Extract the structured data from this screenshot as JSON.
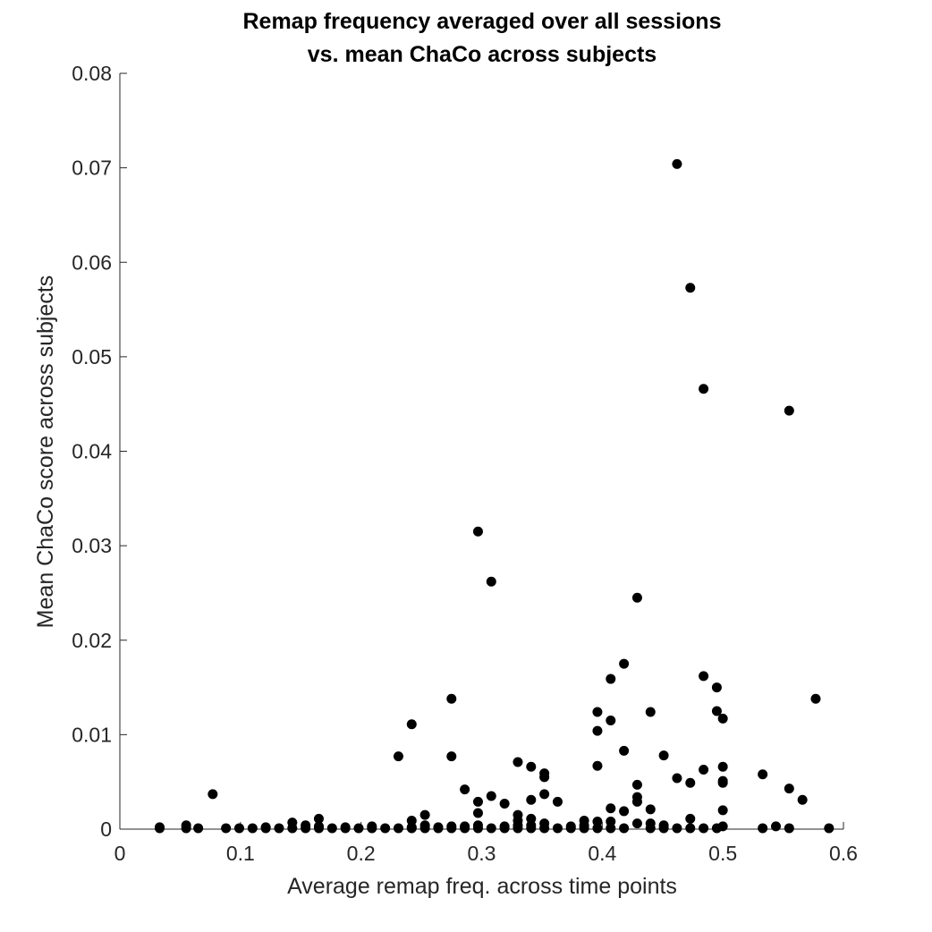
{
  "chart_data": {
    "type": "scatter",
    "title": [
      "Remap frequency averaged over all sessions",
      "vs. mean ChaCo across subjects"
    ],
    "xlabel": "Average remap freq. across time points",
    "ylabel": "Mean ChaCo score across subjects",
    "xlim": [
      0,
      0.6
    ],
    "ylim": [
      0,
      0.08
    ],
    "x_ticks": [
      0,
      0.1,
      0.2,
      0.3,
      0.4,
      0.5,
      0.6
    ],
    "x_tick_labels": [
      "0",
      "0.1",
      "0.2",
      "0.3",
      "0.4",
      "0.5",
      "0.6"
    ],
    "y_ticks": [
      0,
      0.01,
      0.02,
      0.03,
      0.04,
      0.05,
      0.06,
      0.07,
      0.08
    ],
    "y_tick_labels": [
      "0",
      "0.01",
      "0.02",
      "0.03",
      "0.04",
      "0.05",
      "0.06",
      "0.07",
      "0.08"
    ],
    "grid": false,
    "marker_color": "#000000",
    "points": [
      [
        0.033,
        0.0001
      ],
      [
        0.033,
        0.0002
      ],
      [
        0.055,
        0.0004
      ],
      [
        0.055,
        0.0001
      ],
      [
        0.065,
        0.0001
      ],
      [
        0.077,
        0.0037
      ],
      [
        0.088,
        0.0001
      ],
      [
        0.099,
        0.0001
      ],
      [
        0.11,
        0.0001
      ],
      [
        0.121,
        0.0002
      ],
      [
        0.121,
        0.0001
      ],
      [
        0.132,
        0.0001
      ],
      [
        0.143,
        0.0007
      ],
      [
        0.143,
        0.0001
      ],
      [
        0.154,
        0.0004
      ],
      [
        0.154,
        0.0001
      ],
      [
        0.165,
        0.0011
      ],
      [
        0.165,
        0.0003
      ],
      [
        0.165,
        0.0001
      ],
      [
        0.176,
        0.0001
      ],
      [
        0.187,
        0.0002
      ],
      [
        0.187,
        0.0001
      ],
      [
        0.198,
        0.0001
      ],
      [
        0.209,
        0.0003
      ],
      [
        0.209,
        0.0001
      ],
      [
        0.22,
        0.0001
      ],
      [
        0.231,
        0.0077
      ],
      [
        0.231,
        0.0001
      ],
      [
        0.242,
        0.0111
      ],
      [
        0.242,
        0.0009
      ],
      [
        0.242,
        0.0002
      ],
      [
        0.242,
        0.0001
      ],
      [
        0.253,
        0.0015
      ],
      [
        0.253,
        0.0004
      ],
      [
        0.253,
        0.0001
      ],
      [
        0.264,
        0.0002
      ],
      [
        0.264,
        0.0001
      ],
      [
        0.275,
        0.0138
      ],
      [
        0.275,
        0.0077
      ],
      [
        0.275,
        0.0003
      ],
      [
        0.275,
        0.0001
      ],
      [
        0.286,
        0.0042
      ],
      [
        0.286,
        0.0003
      ],
      [
        0.286,
        0.0001
      ],
      [
        0.297,
        0.0315
      ],
      [
        0.297,
        0.0029
      ],
      [
        0.297,
        0.0017
      ],
      [
        0.297,
        0.0004
      ],
      [
        0.297,
        0.0001
      ],
      [
        0.308,
        0.0262
      ],
      [
        0.308,
        0.0035
      ],
      [
        0.308,
        0.0001
      ],
      [
        0.319,
        0.0027
      ],
      [
        0.319,
        0.0003
      ],
      [
        0.319,
        0.0001
      ],
      [
        0.33,
        0.0071
      ],
      [
        0.33,
        0.0015
      ],
      [
        0.33,
        0.0009
      ],
      [
        0.33,
        0.0004
      ],
      [
        0.33,
        0.0001
      ],
      [
        0.341,
        0.0066
      ],
      [
        0.341,
        0.0031
      ],
      [
        0.341,
        0.0011
      ],
      [
        0.341,
        0.0004
      ],
      [
        0.341,
        0.0001
      ],
      [
        0.352,
        0.0059
      ],
      [
        0.352,
        0.0055
      ],
      [
        0.352,
        0.0037
      ],
      [
        0.352,
        0.0006
      ],
      [
        0.352,
        0.0001
      ],
      [
        0.363,
        0.0029
      ],
      [
        0.363,
        0.0001
      ],
      [
        0.374,
        0.0003
      ],
      [
        0.374,
        0.0001
      ],
      [
        0.385,
        0.0009
      ],
      [
        0.385,
        0.0004
      ],
      [
        0.385,
        0.0001
      ],
      [
        0.396,
        0.0124
      ],
      [
        0.396,
        0.0104
      ],
      [
        0.396,
        0.0067
      ],
      [
        0.396,
        0.0008
      ],
      [
        0.396,
        0.0001
      ],
      [
        0.407,
        0.0159
      ],
      [
        0.407,
        0.0115
      ],
      [
        0.407,
        0.0022
      ],
      [
        0.407,
        0.0008
      ],
      [
        0.407,
        0.0001
      ],
      [
        0.418,
        0.0175
      ],
      [
        0.418,
        0.0083
      ],
      [
        0.418,
        0.0019
      ],
      [
        0.418,
        0.0001
      ],
      [
        0.429,
        0.0245
      ],
      [
        0.429,
        0.0047
      ],
      [
        0.429,
        0.0034
      ],
      [
        0.429,
        0.0029
      ],
      [
        0.429,
        0.0006
      ],
      [
        0.44,
        0.0124
      ],
      [
        0.44,
        0.0021
      ],
      [
        0.44,
        0.0006
      ],
      [
        0.44,
        0.0001
      ],
      [
        0.451,
        0.0078
      ],
      [
        0.451,
        0.0004
      ],
      [
        0.451,
        0.0001
      ],
      [
        0.462,
        0.0704
      ],
      [
        0.462,
        0.0054
      ],
      [
        0.462,
        0.0001
      ],
      [
        0.473,
        0.0573
      ],
      [
        0.473,
        0.0049
      ],
      [
        0.473,
        0.0011
      ],
      [
        0.473,
        0.0001
      ],
      [
        0.484,
        0.0466
      ],
      [
        0.484,
        0.0162
      ],
      [
        0.484,
        0.0063
      ],
      [
        0.484,
        0.0001
      ],
      [
        0.495,
        0.015
      ],
      [
        0.495,
        0.0125
      ],
      [
        0.495,
        0.0001
      ],
      [
        0.5,
        0.0117
      ],
      [
        0.5,
        0.0066
      ],
      [
        0.5,
        0.0051
      ],
      [
        0.5,
        0.0049
      ],
      [
        0.5,
        0.002
      ],
      [
        0.5,
        0.0003
      ],
      [
        0.533,
        0.0058
      ],
      [
        0.533,
        0.0001
      ],
      [
        0.544,
        0.0003
      ],
      [
        0.555,
        0.0443
      ],
      [
        0.555,
        0.0043
      ],
      [
        0.555,
        0.0001
      ],
      [
        0.566,
        0.0031
      ],
      [
        0.577,
        0.0138
      ],
      [
        0.588,
        0.0001
      ]
    ]
  }
}
